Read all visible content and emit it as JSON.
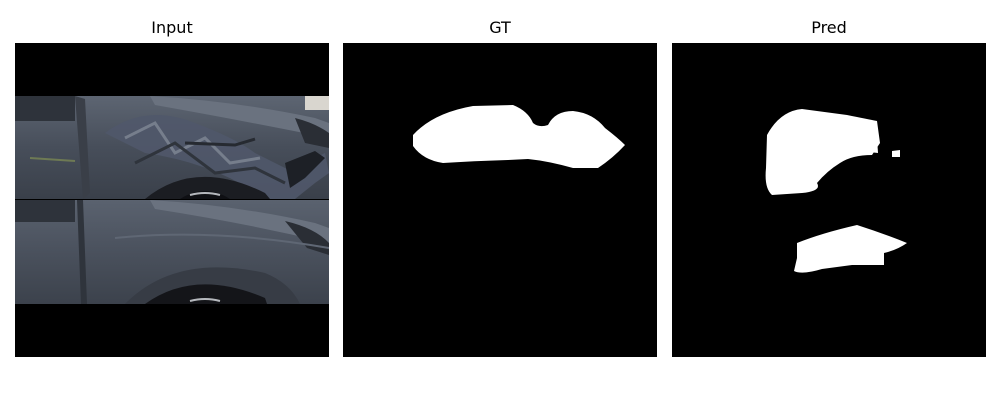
{
  "figure": {
    "panels": [
      {
        "title": "Input"
      },
      {
        "title": "GT"
      },
      {
        "title": "Pred"
      }
    ]
  },
  "colors": {
    "background": "#ffffff",
    "mask_background": "#000000",
    "mask_foreground": "#ffffff",
    "car_paint": "#4a5260"
  }
}
